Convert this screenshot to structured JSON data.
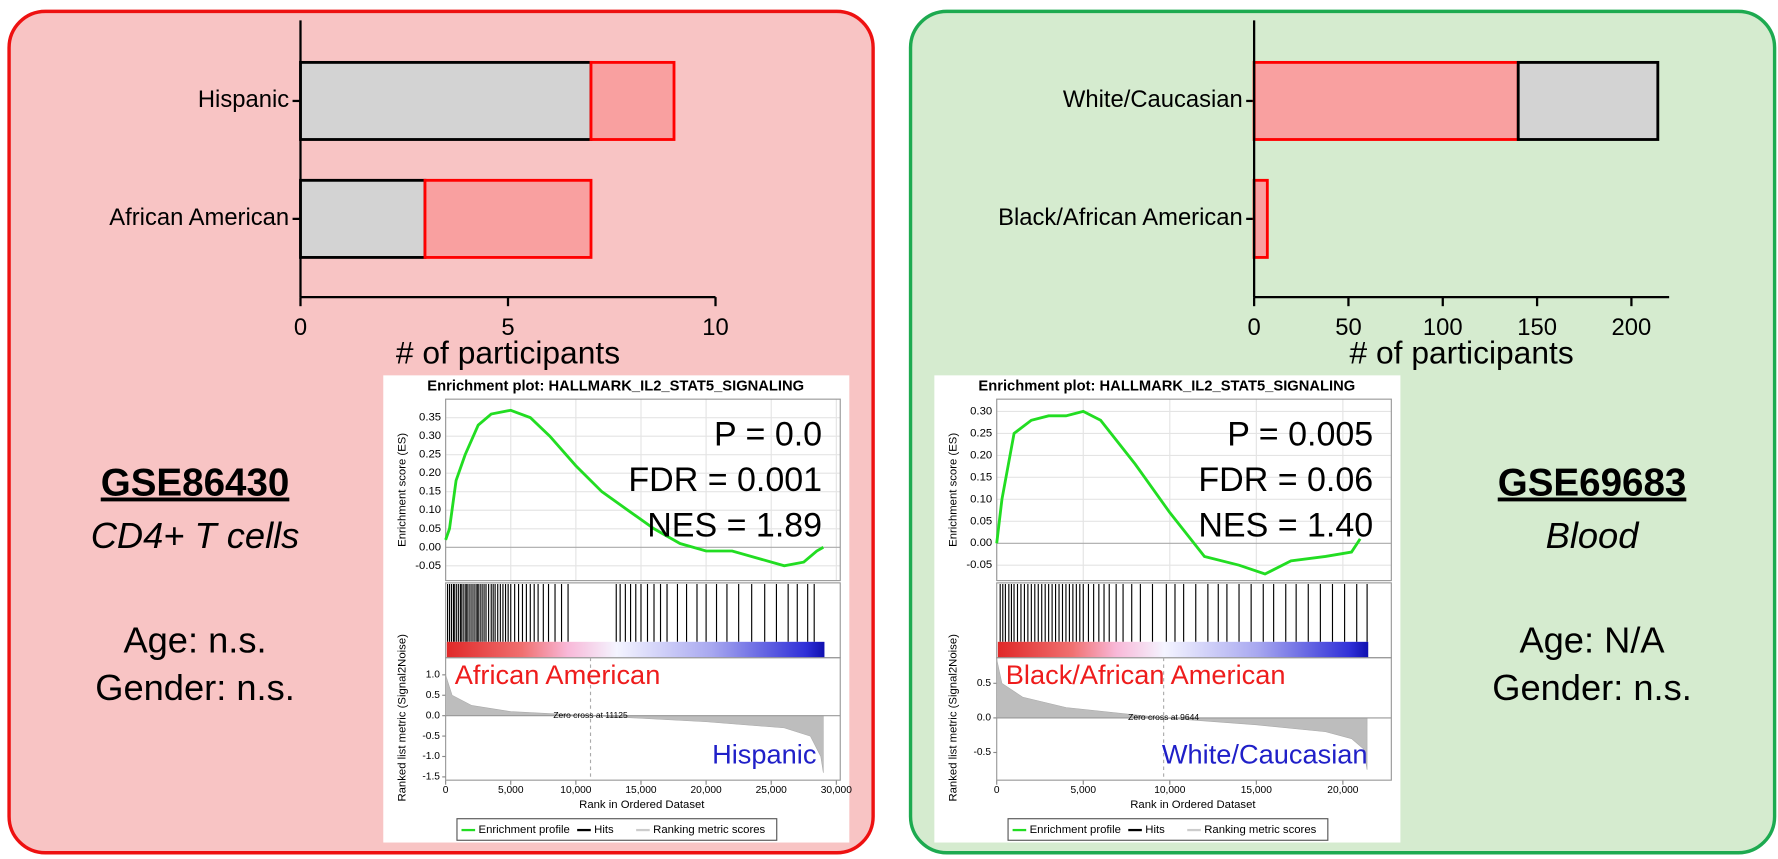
{
  "panels": [
    {
      "id": "GSE86430",
      "subtitle": "CD4+ T cells",
      "age": "Age: n.s.",
      "gender": "Gender: n.s."
    },
    {
      "id": "GSE69683",
      "subtitle": "Blood",
      "age": "Age: N/A",
      "gender": "Gender: n.s."
    }
  ],
  "chart_data": [
    {
      "type": "stacked-bar",
      "x_label": "# of participants",
      "categories": [
        "Hispanic",
        "African American"
      ],
      "series": [
        {
          "color": "#d3d3d3",
          "edge_color": "#000000",
          "values": [
            7,
            3
          ]
        },
        {
          "color": "#f9a0a0",
          "edge_color": "#ff0000",
          "values": [
            2,
            4
          ]
        }
      ],
      "xlim": [
        0,
        10
      ],
      "xticks": [
        0,
        5,
        10
      ]
    },
    {
      "type": "gsea",
      "title": "Enrichment plot: HALLMARK_IL2_STAT5_SIGNALING",
      "annotations": [
        "P = 0.0",
        "FDR = 0.001",
        "NES = 1.89"
      ],
      "y_label": "Enrichment score (ES)",
      "color": "#22dd22",
      "x": [
        0,
        300,
        800,
        1500,
        2500,
        3500,
        5000,
        6500,
        8000,
        10000,
        12000,
        14000,
        16000,
        18000,
        20000,
        22000,
        24000,
        26000,
        27500,
        28500,
        29000
      ],
      "values": [
        0.02,
        0.05,
        0.18,
        0.25,
        0.33,
        0.36,
        0.37,
        0.35,
        0.3,
        0.22,
        0.15,
        0.1,
        0.05,
        0.01,
        -0.01,
        -0.01,
        -0.03,
        -0.05,
        -0.04,
        -0.01,
        0.0
      ],
      "ylim": [
        -0.09,
        0.4
      ],
      "yticks": [
        0.35,
        {
          "value": 0.3,
          "label": "0.30"
        },
        0.25,
        {
          "value": 0.2,
          "label": "0.20"
        },
        0.15,
        {
          "value": 0.1,
          "label": "0.10"
        },
        0.05,
        {
          "value": 0,
          "label": "0.00"
        },
        -0.05
      ],
      "hits": [
        150,
        300,
        450,
        600,
        700,
        850,
        1000,
        1150,
        1250,
        1400,
        1550,
        1650,
        1800,
        1950,
        2100,
        2250,
        2400,
        2500,
        2650,
        2800,
        2950,
        3100,
        3300,
        3500,
        3650,
        3800,
        4000,
        4200,
        4400,
        4600,
        4800,
        5000,
        5300,
        5600,
        5900,
        6200,
        6500,
        6800,
        7100,
        7500,
        7900,
        8400,
        8900,
        9400,
        13100,
        13400,
        13800,
        14200,
        14600,
        15000,
        15500,
        16000,
        16500,
        17000,
        17800,
        18500,
        19300,
        20000,
        20800,
        21600,
        22500,
        23500,
        24500,
        25400,
        26300,
        27000,
        27800,
        28300
      ],
      "phenotypes": [
        "African American",
        "Hispanic"
      ],
      "metric": {
        "y_label": "Ranked list metric (Signal2Noise)",
        "x": [
          0,
          500,
          2000,
          5000,
          11125,
          20000,
          26000,
          28000,
          28800,
          29000
        ],
        "values": [
          1.0,
          0.5,
          0.25,
          0.1,
          0,
          -0.15,
          -0.3,
          -0.5,
          -1.0,
          -1.4
        ],
        "ylim": [
          -1.58,
          1.42
        ],
        "yticks": [
          {
            "value": 1,
            "label": "1.0"
          },
          0.5,
          {
            "value": 0,
            "label": "0.0"
          },
          -0.5,
          {
            "value": -1,
            "label": "-1.0"
          },
          -1.5
        ]
      },
      "zero_cross": {
        "value": 11125,
        "label": "Zero cross at 11125"
      },
      "x_label": "Rank in Ordered Dataset",
      "xlim": [
        0,
        30300
      ],
      "xticks": [
        0,
        {
          "value": 5000,
          "label": "5,000"
        },
        {
          "value": 10000,
          "label": "10,000"
        },
        {
          "value": 15000,
          "label": "15,000"
        },
        {
          "value": 20000,
          "label": "20,000"
        },
        {
          "value": 25000,
          "label": "25,000"
        },
        {
          "value": 30000,
          "label": "30,000"
        }
      ],
      "legend": [
        "Enrichment profile",
        "Hits",
        "Ranking metric scores"
      ]
    },
    {
      "type": "stacked-bar",
      "x_label": "# of participants",
      "categories": [
        "White/Caucasian",
        "Black/African American"
      ],
      "series": [
        {
          "color": "#f9a0a0",
          "edge_color": "#ff0000",
          "values": [
            140,
            7
          ]
        },
        {
          "color": "#d3d3d3",
          "edge_color": "#000000",
          "values": [
            74,
            0
          ]
        }
      ],
      "xlim": [
        0,
        220
      ],
      "xticks": [
        0,
        50,
        100,
        150,
        200
      ]
    },
    {
      "type": "gsea",
      "title": "Enrichment plot: HALLMARK_IL2_STAT5_SIGNALING",
      "annotations": [
        "P = 0.005",
        "FDR = 0.06",
        "NES = 1.40"
      ],
      "y_label": "Enrichment score (ES)",
      "color": "#22dd22",
      "x": [
        0,
        300,
        1000,
        2000,
        3000,
        4000,
        5000,
        6000,
        8000,
        10000,
        12000,
        14000,
        15500,
        17000,
        19000,
        20500,
        21000
      ],
      "values": [
        0,
        0.1,
        0.25,
        0.28,
        0.29,
        0.29,
        0.3,
        0.28,
        0.18,
        0.07,
        -0.03,
        -0.05,
        -0.07,
        -0.04,
        -0.03,
        -0.02,
        0.01
      ],
      "ylim": [
        -0.085,
        0.328
      ],
      "yticks": [
        {
          "value": 0.3,
          "label": "0.30"
        },
        0.25,
        {
          "value": 0.2,
          "label": "0.20"
        },
        0.15,
        {
          "value": 0.1,
          "label": "0.10"
        },
        0.05,
        {
          "value": 0,
          "label": "0.00"
        },
        -0.05
      ],
      "hits": [
        200,
        350,
        500,
        700,
        850,
        1000,
        1200,
        1400,
        1600,
        1800,
        2000,
        2200,
        2400,
        2600,
        2800,
        3000,
        3200,
        3400,
        3600,
        3800,
        4000,
        4200,
        4400,
        4600,
        4800,
        5000,
        5300,
        5600,
        5900,
        6200,
        6500,
        6900,
        7300,
        7800,
        8300,
        9000,
        9800,
        10300,
        10800,
        11500,
        12200,
        12800,
        13300,
        14000,
        14700,
        15400,
        16000,
        16700,
        17300,
        18000,
        18700,
        19400,
        20100,
        20800,
        21400
      ],
      "phenotypes": [
        "Black/African American",
        "White/Caucasian"
      ],
      "metric": {
        "y_label": "Ranked list metric (Signal2Noise)",
        "x": [
          0,
          300,
          1500,
          4000,
          9644,
          15000,
          19000,
          20500,
          21200,
          21400
        ],
        "values": [
          0.85,
          0.5,
          0.3,
          0.15,
          0,
          -0.1,
          -0.2,
          -0.3,
          -0.45,
          -0.75
        ],
        "ylim": [
          -0.9,
          0.87
        ],
        "yticks": [
          0.5,
          {
            "value": 0,
            "label": "0.0"
          },
          -0.5
        ]
      },
      "zero_cross": {
        "value": 9644,
        "label": "Zero cross at 9644"
      },
      "x_label": "Rank in Ordered Dataset",
      "xlim": [
        0,
        22800
      ],
      "xticks": [
        0,
        {
          "value": 5000,
          "label": "5,000"
        },
        {
          "value": 10000,
          "label": "10,000"
        },
        {
          "value": 15000,
          "label": "15,000"
        },
        {
          "value": 20000,
          "label": "20,000"
        }
      ],
      "legend": [
        "Enrichment profile",
        "Hits",
        "Ranking metric scores"
      ]
    }
  ]
}
